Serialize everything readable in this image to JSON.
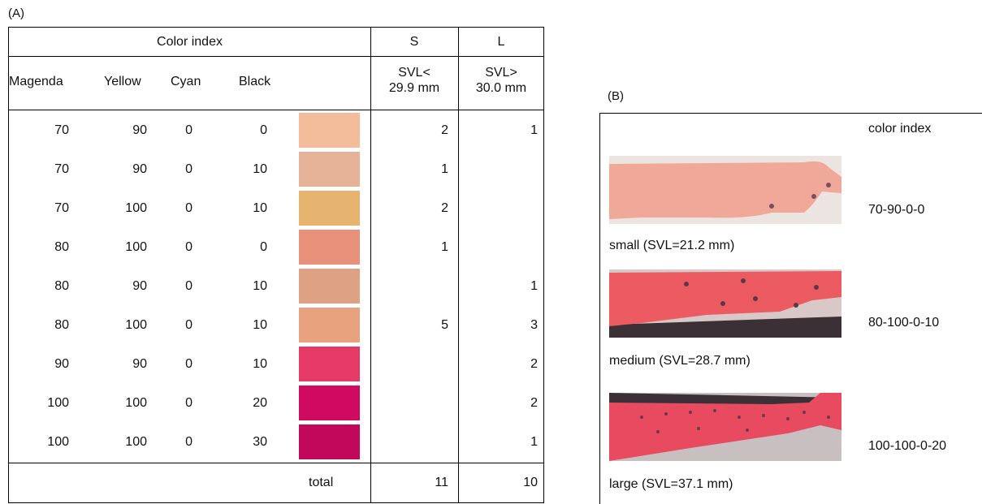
{
  "panel_a": {
    "label": "(A)",
    "header": {
      "color_index": "Color index",
      "s": "S",
      "l": "L",
      "magenda": "Magenda",
      "yellow": "Yellow",
      "cyan": "Cyan",
      "black": "Black",
      "s_sub_1": "SVL<",
      "s_sub_2": "29.9 mm",
      "l_sub_1": "SVL>",
      "l_sub_2": "30.0 mm"
    },
    "rows": [
      {
        "m": "70",
        "y": "90",
        "c": "0",
        "k": "0",
        "color": "#f3bc9a",
        "s": "2",
        "l": "1"
      },
      {
        "m": "70",
        "y": "90",
        "c": "0",
        "k": "10",
        "color": "#e6b398",
        "s": "1",
        "l": ""
      },
      {
        "m": "70",
        "y": "100",
        "c": "0",
        "k": "10",
        "color": "#e6b46e",
        "s": "2",
        "l": ""
      },
      {
        "m": "80",
        "y": "100",
        "c": "0",
        "k": "0",
        "color": "#e8907a",
        "s": "1",
        "l": ""
      },
      {
        "m": "80",
        "y": "90",
        "c": "0",
        "k": "10",
        "color": "#dea184",
        "s": "",
        "l": "1"
      },
      {
        "m": "80",
        "y": "100",
        "c": "0",
        "k": "10",
        "color": "#e8a37e",
        "s": "5",
        "l": "3"
      },
      {
        "m": "90",
        "y": "90",
        "c": "0",
        "k": "10",
        "color": "#e53a68",
        "s": "",
        "l": "2"
      },
      {
        "m": "100",
        "y": "100",
        "c": "0",
        "k": "20",
        "color": "#d00a60",
        "s": "",
        "l": "2"
      },
      {
        "m": "100",
        "y": "100",
        "c": "0",
        "k": "30",
        "color": "#c2085a",
        "s": "",
        "l": "1"
      }
    ],
    "total": {
      "label": "total",
      "s": "11",
      "l": "10"
    }
  },
  "panel_b": {
    "label": "(B)",
    "header": "color index",
    "items": [
      {
        "caption": "small (SVL=21.2 mm)",
        "index": "70-90-0-0",
        "base_color": "#f0a898",
        "spot_color": "#7a5060"
      },
      {
        "caption": "medium (SVL=28.7 mm)",
        "index": "80-100-0-10",
        "base_color": "#ec5a62",
        "spot_color": "#5a3a48"
      },
      {
        "caption": "large (SVL=37.1 mm)",
        "index": "100-100-0-20",
        "base_color": "#e84a60",
        "spot_color": "#6a3a48"
      }
    ]
  }
}
